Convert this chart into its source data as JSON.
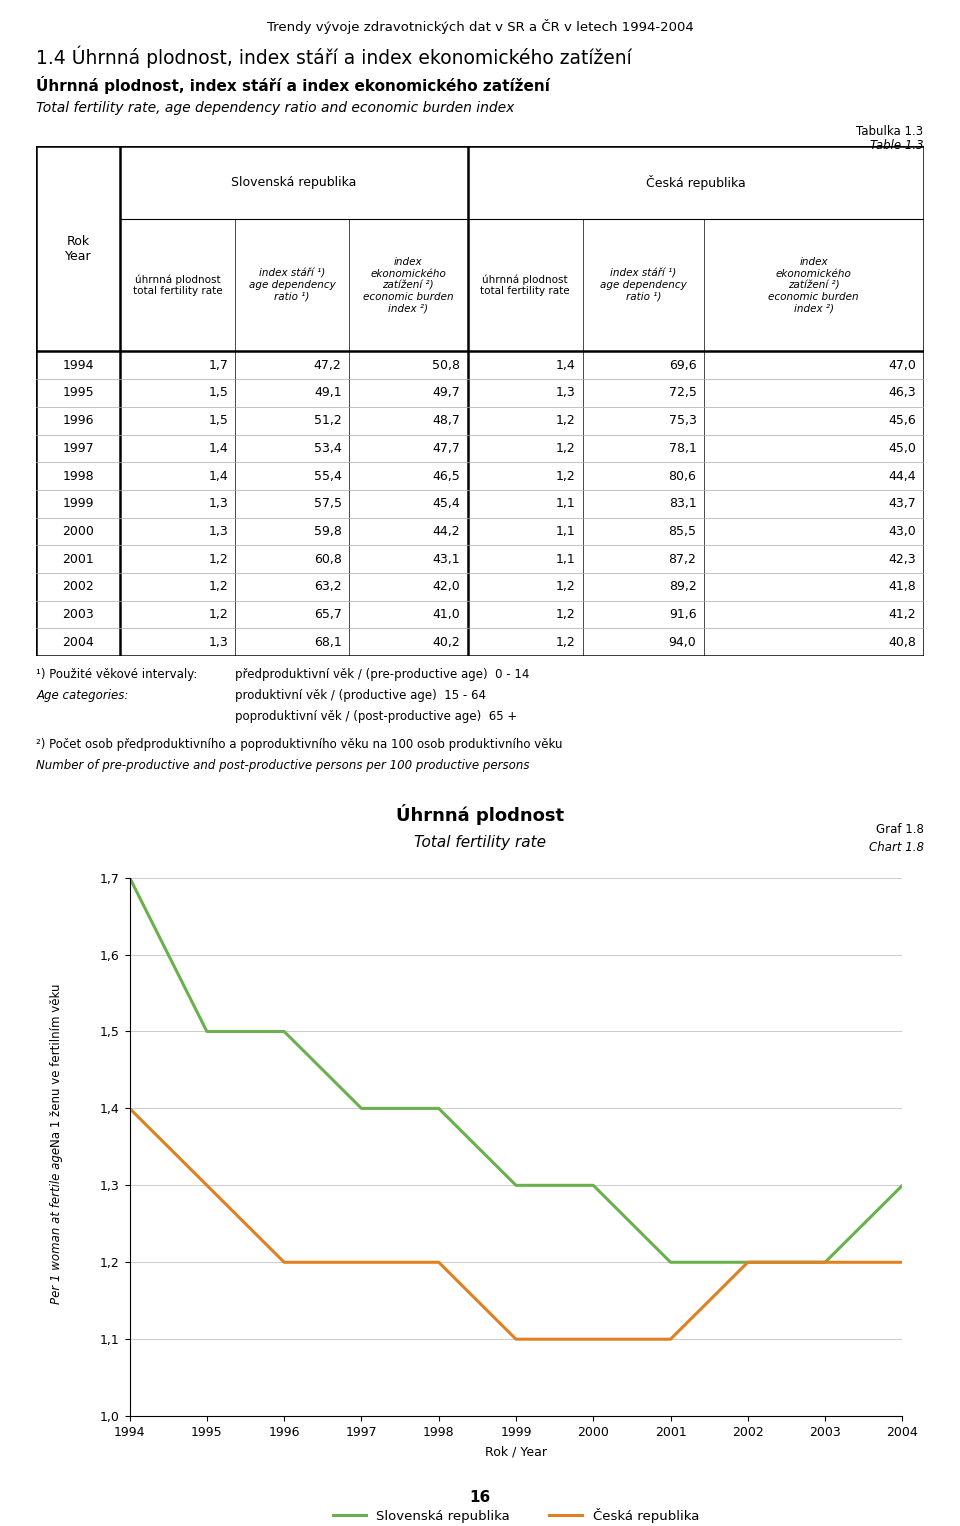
{
  "page_title": "Trendy vývoje zdravotnických dat v SR a ČR v letech 1994-2004",
  "section_title": "1.4 Úhrnná plodnost, index stáří a index ekonomického zatížení",
  "subtitle_bold": "Úhrnná plodnost, index stáří a index ekonomického zatížení",
  "subtitle_italic": "Total fertility rate, age dependency ratio and economic burden index",
  "col_header_sr": "Slovenská republika",
  "col_header_cr": "Česká republika",
  "years": [
    1994,
    1995,
    1996,
    1997,
    1998,
    1999,
    2000,
    2001,
    2002,
    2003,
    2004
  ],
  "sr_fertility": [
    1.7,
    1.5,
    1.5,
    1.4,
    1.4,
    1.3,
    1.3,
    1.2,
    1.2,
    1.2,
    1.3
  ],
  "sr_age_dep": [
    47.2,
    49.1,
    51.2,
    53.4,
    55.4,
    57.5,
    59.8,
    60.8,
    63.2,
    65.7,
    68.1
  ],
  "sr_econ": [
    50.8,
    49.7,
    48.7,
    47.7,
    46.5,
    45.4,
    44.2,
    43.1,
    42.0,
    41.0,
    40.2
  ],
  "cr_fertility": [
    1.4,
    1.3,
    1.2,
    1.2,
    1.2,
    1.1,
    1.1,
    1.1,
    1.2,
    1.2,
    1.2
  ],
  "cr_age_dep": [
    69.6,
    72.5,
    75.3,
    78.1,
    80.6,
    83.1,
    85.5,
    87.2,
    89.2,
    91.6,
    94.0
  ],
  "cr_econ": [
    47.0,
    46.3,
    45.6,
    45.0,
    44.4,
    43.7,
    43.0,
    42.3,
    41.8,
    41.2,
    40.8
  ],
  "chart_title_bold": "Úhrnná plodnost",
  "chart_title_italic": "Total fertility rate",
  "ylabel_bold": "Na 1 ženu ve fertilním věku",
  "ylabel_italic": "Per 1 woman at fertile age",
  "xlabel": "Rok / Year",
  "ylim": [
    1.0,
    1.7
  ],
  "yticks": [
    1.0,
    1.1,
    1.2,
    1.3,
    1.4,
    1.5,
    1.6,
    1.7
  ],
  "sr_color": "#6ab04c",
  "cr_color": "#e08020",
  "legend_sr": "Slovenská republika",
  "legend_cr": "Česká republika",
  "page_number": "16",
  "bg_color": "#ffffff",
  "grid_color": "#cccccc"
}
